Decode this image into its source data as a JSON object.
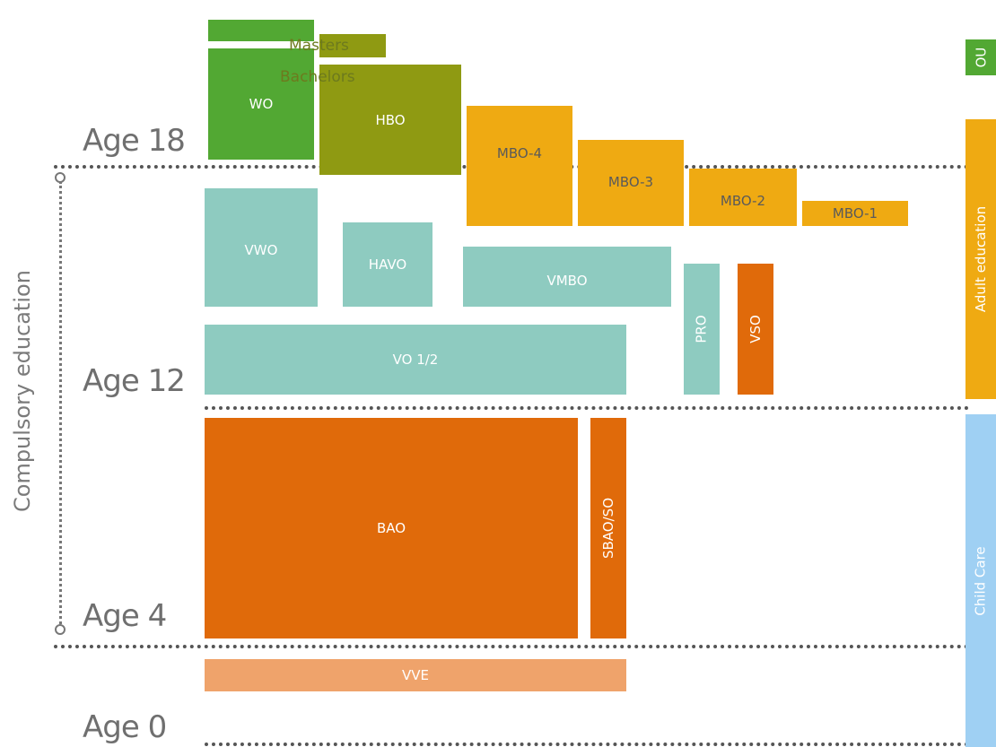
{
  "ages": {
    "age18": "Age 18",
    "age12": "Age 12",
    "age4": "Age 4",
    "age0": "Age 0"
  },
  "side_label": "Compulsory education",
  "labels": {
    "masters": "Masters",
    "bachelors": "Bachelors"
  },
  "boxes": {
    "wo": "WO",
    "hbo": "HBO",
    "mbo4": "MBO-4",
    "mbo3": "MBO-3",
    "mbo2": "MBO-2",
    "mbo1": "MBO-1",
    "vwo": "VWO",
    "havo": "HAVO",
    "vmbo": "VMBO",
    "pro": "PRO",
    "vso": "VSO",
    "vo12": "VO 1/2",
    "bao": "BAO",
    "sbaoso": "SBAO/SO",
    "vve": "VVE",
    "ou": "OU",
    "adult_education": "Adult education",
    "child_care": "Child Care"
  },
  "colors": {
    "green": "#52a833",
    "olive": "#8f9a12",
    "amber": "#efaa12",
    "teal": "#8ecbc0",
    "orange": "#e06a0a",
    "peach": "#efa36b",
    "lightblue": "#9fd0f3"
  }
}
